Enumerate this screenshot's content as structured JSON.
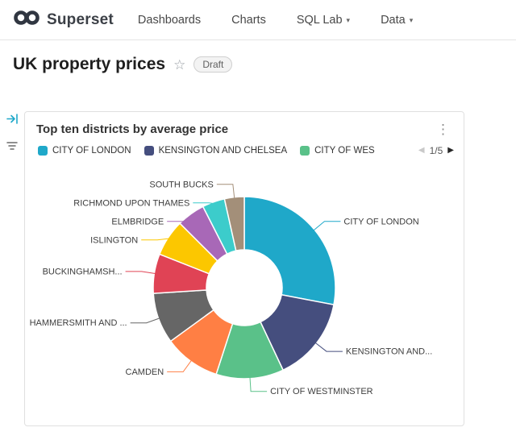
{
  "navbar": {
    "brand": "Superset",
    "items": [
      {
        "label": "Dashboards"
      },
      {
        "label": "Charts"
      },
      {
        "label": "SQL Lab"
      },
      {
        "label": "Data"
      }
    ]
  },
  "page": {
    "title": "UK property prices",
    "status_badge": "Draft"
  },
  "card": {
    "title": "Top ten districts by average price"
  },
  "legend": {
    "visible_items": [
      {
        "label": "CITY OF LONDON",
        "color": "#1FA8C9"
      },
      {
        "label": "KENSINGTON AND CHELSEA",
        "color": "#454E7E"
      },
      {
        "label": "CITY OF WES",
        "color": "#5AC189"
      }
    ],
    "pagination": {
      "current": "1/5"
    }
  },
  "chart_data": {
    "type": "pie",
    "subtype": "donut",
    "title": "Top ten districts by average price",
    "legend_position": "top",
    "values_note": "percent share estimated from arc angles",
    "slices": [
      {
        "label": "CITY OF LONDON",
        "value": 28,
        "color": "#1FA8C9"
      },
      {
        "label": "KENSINGTON AND...",
        "value": 15,
        "color": "#454E7E"
      },
      {
        "label": "CITY OF WESTMINSTER",
        "value": 12,
        "color": "#5AC189"
      },
      {
        "label": "CAMDEN",
        "value": 10,
        "color": "#FF7F44"
      },
      {
        "label": "HAMMERSMITH AND ...",
        "value": 9,
        "color": "#666666"
      },
      {
        "label": "BUCKINGHAMSH...",
        "value": 7,
        "color": "#E04355"
      },
      {
        "label": "ISLINGTON",
        "value": 6.5,
        "color": "#FCC700"
      },
      {
        "label": "ELMBRIDGE",
        "value": 5,
        "color": "#A868B7"
      },
      {
        "label": "RICHMOND UPON THAMES",
        "value": 4,
        "color": "#3CCCCB"
      },
      {
        "label": "SOUTH BUCKS",
        "value": 3.5,
        "color": "#A38F79"
      }
    ]
  }
}
